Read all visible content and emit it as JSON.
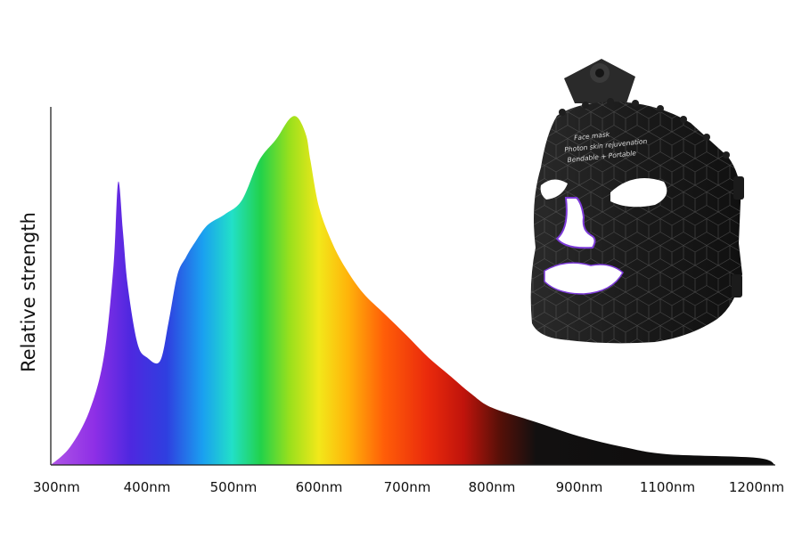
{
  "chart_data": {
    "type": "area",
    "ylabel": "Relative strength",
    "xlabel": "",
    "title": "",
    "x_ticks": [
      "300nm",
      "400nm",
      "500nm",
      "600nm",
      "700nm",
      "800nm",
      "900nm",
      "1100nm",
      "1200nm"
    ],
    "x_unit": "nm",
    "y_axis_numbers": false,
    "ylim": [
      0,
      1
    ],
    "wavelength_nm": [
      300,
      320,
      340,
      355,
      365,
      370,
      375,
      380,
      390,
      400,
      415,
      425,
      435,
      445,
      455,
      470,
      490,
      510,
      530,
      550,
      565,
      575,
      585,
      590,
      600,
      615,
      630,
      650,
      675,
      700,
      725,
      750,
      775,
      800,
      850,
      900,
      1000,
      1100,
      1200,
      1235
    ],
    "relative_strength": [
      0.0,
      0.05,
      0.15,
      0.3,
      0.55,
      0.79,
      0.65,
      0.5,
      0.34,
      0.3,
      0.29,
      0.4,
      0.53,
      0.58,
      0.62,
      0.67,
      0.7,
      0.74,
      0.85,
      0.91,
      0.965,
      0.97,
      0.92,
      0.85,
      0.72,
      0.62,
      0.55,
      0.48,
      0.42,
      0.36,
      0.3,
      0.25,
      0.2,
      0.16,
      0.12,
      0.08,
      0.05,
      0.03,
      0.02,
      0.0
    ],
    "fill": "visible spectrum gradient (violet → blue → cyan → green → yellow → orange → red → black)",
    "grid": false,
    "legend": "none"
  },
  "product": {
    "text_lines": [
      "Face mask",
      "Photon skin rejuvenation",
      "Bendable + Portable"
    ]
  }
}
